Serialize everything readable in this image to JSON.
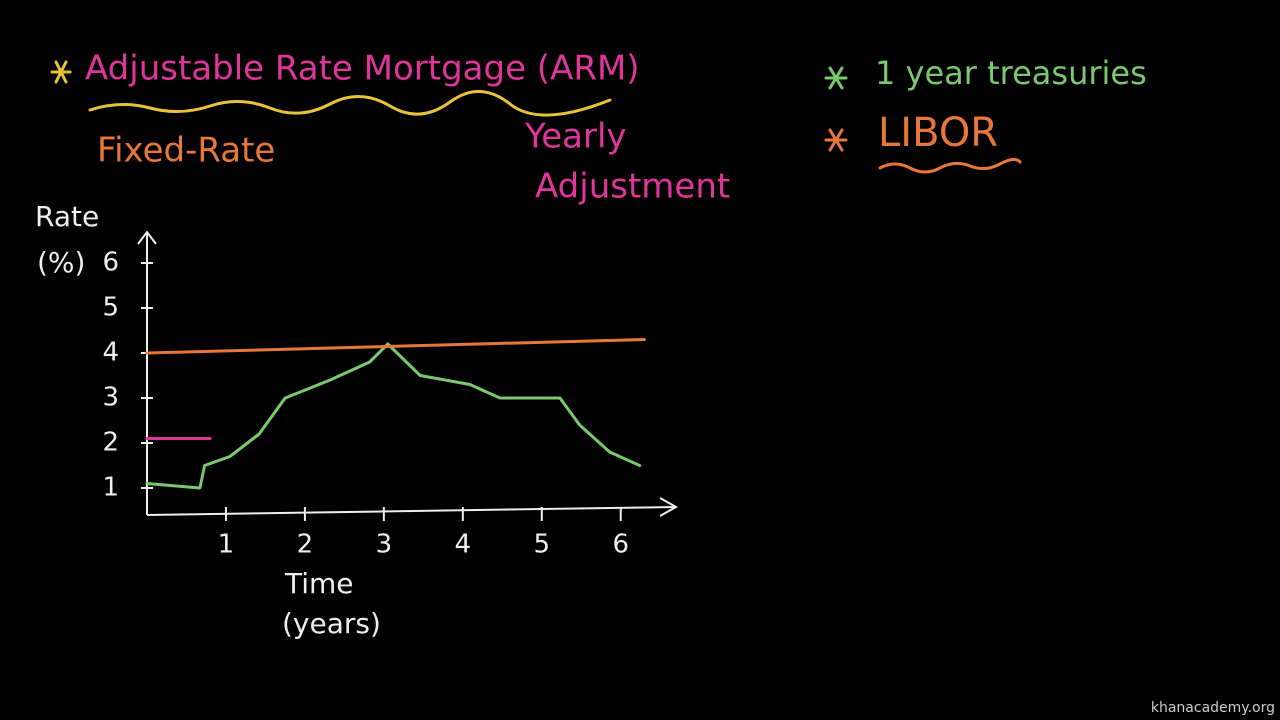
{
  "chart_data": {
    "type": "line",
    "title": "Adjustable Rate Mortgage (ARM)",
    "title_color": "#e0359b",
    "annotations": [
      {
        "text": "Fixed-Rate",
        "color": "#e8783a"
      },
      {
        "text": "Yearly",
        "color": "#e0359b"
      },
      {
        "text": "Adjustment",
        "color": "#e0359b"
      },
      {
        "text": "1 year treasuries",
        "color": "#7cc870"
      },
      {
        "text": "LIBOR",
        "color": "#e8783a"
      }
    ],
    "xlabel": [
      "Time",
      "(years)"
    ],
    "ylabel": [
      "Rate",
      "(%)"
    ],
    "xlim": [
      0,
      6.7
    ],
    "ylim": [
      0.4,
      6.6
    ],
    "xticks": [
      1,
      2,
      3,
      4,
      5,
      6
    ],
    "yticks": [
      1,
      2,
      3,
      4,
      5,
      6
    ],
    "series": [
      {
        "color": "#7cc870",
        "x": [
          0,
          0.67,
          0.73,
          1.05,
          1.42,
          1.75,
          2.32,
          2.82,
          3.05,
          3.46,
          4.09,
          4.47,
          5.23,
          5.48,
          5.86,
          6.24
        ],
        "values": [
          1.1,
          1.0,
          1.5,
          1.7,
          2.2,
          3.0,
          3.4,
          3.8,
          4.2,
          3.5,
          3.3,
          3.0,
          3.0,
          2.4,
          1.8,
          1.5
        ]
      },
      {
        "color": "#e8783a",
        "x": [
          0,
          6.3
        ],
        "values": [
          4.0,
          4.3
        ]
      },
      {
        "color": "#e0359b",
        "x": [
          0,
          0.8
        ],
        "values": [
          2.1,
          2.1
        ]
      }
    ]
  },
  "footer": {
    "watermark": "khanacademy.org"
  }
}
